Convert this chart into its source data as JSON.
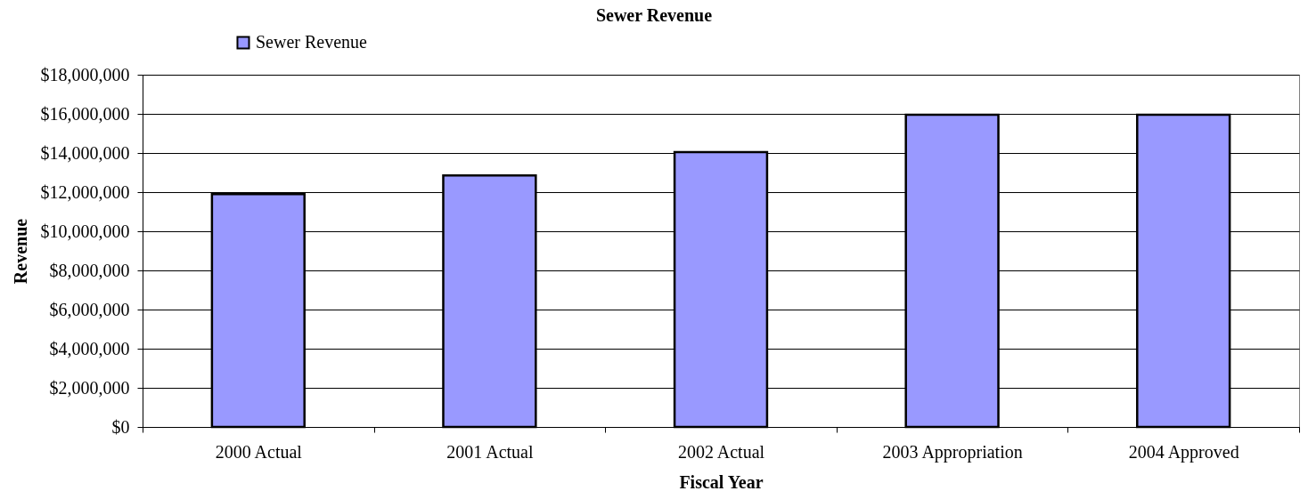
{
  "chart_data": {
    "type": "bar",
    "title": "Sewer Revenue",
    "xlabel": "Fiscal Year",
    "ylabel": "Revenue",
    "categories": [
      "2000 Actual",
      "2001 Actual",
      "2002 Actual",
      "2003 Appropriation",
      "2004 Approved"
    ],
    "series": [
      {
        "name": "Sewer Revenue",
        "color": "#9999ff",
        "values": [
          11900000,
          12850000,
          14050000,
          15950000,
          15950000
        ]
      }
    ],
    "ylim": [
      0,
      18000000
    ],
    "yticks": [
      {
        "value": 0,
        "label": "$0"
      },
      {
        "value": 2000000,
        "label": "$2,000,000"
      },
      {
        "value": 4000000,
        "label": "$4,000,000"
      },
      {
        "value": 6000000,
        "label": "$6,000,000"
      },
      {
        "value": 8000000,
        "label": "$8,000,000"
      },
      {
        "value": 10000000,
        "label": "$10,000,000"
      },
      {
        "value": 12000000,
        "label": "$12,000,000"
      },
      {
        "value": 14000000,
        "label": "$14,000,000"
      },
      {
        "value": 16000000,
        "label": "$16,000,000"
      },
      {
        "value": 18000000,
        "label": "$18,000,000"
      }
    ],
    "grid": "y",
    "legend": "top left"
  }
}
